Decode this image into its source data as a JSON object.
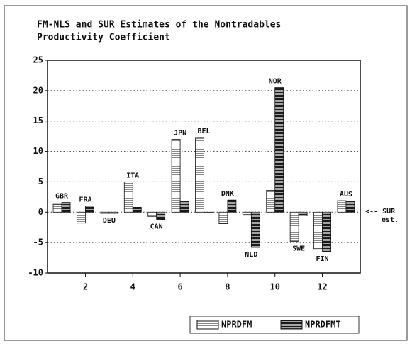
{
  "chart_data": {
    "type": "bar",
    "title": [
      "FM-NLS and SUR Estimates of the Nontradables",
      "Productivity Coefficient"
    ],
    "x": [
      1,
      2,
      3,
      4,
      5,
      6,
      7,
      8,
      9,
      10,
      11,
      12,
      13
    ],
    "labels": [
      "GBR",
      "FRA",
      "DEU",
      "ITA",
      "CAN",
      "JPN",
      "BEL",
      "DNK",
      "NLD",
      "NOR",
      "SWE",
      "FIN",
      "AUS"
    ],
    "series": [
      {
        "name": "NPRDFM",
        "color": "#8a8a8a",
        "values": [
          1.3,
          -1.8,
          -0.2,
          5.0,
          -0.7,
          12.0,
          12.3,
          -1.9,
          -0.4,
          3.6,
          -4.8,
          -6.0,
          1.9
        ]
      },
      {
        "name": "NPRDFMT",
        "color": "#1a1a1a",
        "values": [
          1.6,
          1.0,
          -0.2,
          0.8,
          -1.2,
          1.8,
          -0.1,
          2.0,
          -5.8,
          20.5,
          -0.6,
          -6.5,
          1.8
        ]
      }
    ],
    "xlim": [
      0.4,
      13.6
    ],
    "xticks": [
      2,
      4,
      6,
      8,
      10,
      12
    ],
    "ylim": [
      -10,
      25
    ],
    "yticks": [
      -10,
      -5,
      0,
      5,
      10,
      15,
      20,
      25
    ],
    "grid": true,
    "legend": "bottom-right",
    "annotation": [
      "<-- SUR",
      "est."
    ]
  }
}
